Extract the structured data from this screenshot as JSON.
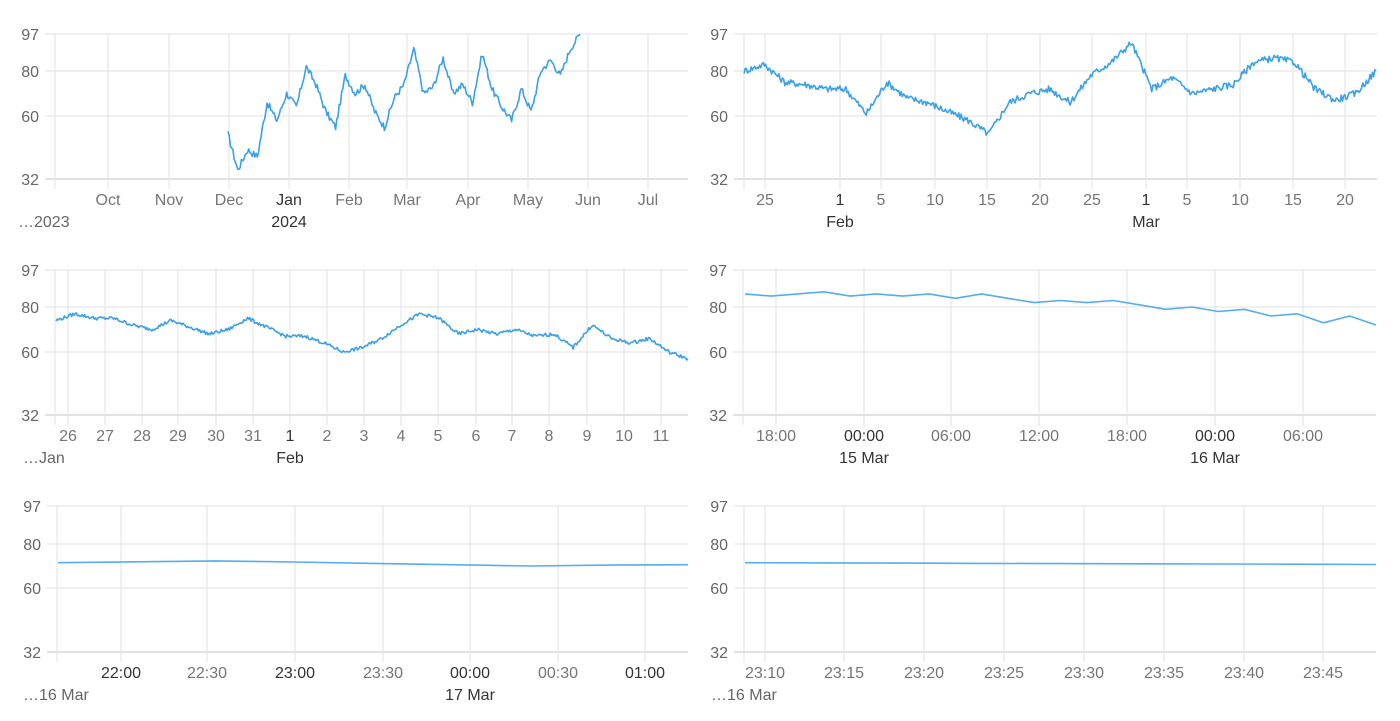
{
  "theme": {
    "line_color": "#3aa0e8",
    "line_color_light": "#55adec",
    "grid_color": "#e2e2e2"
  },
  "chart_data": [
    {
      "id": "top-left",
      "type": "line",
      "title": "",
      "xlabel": "",
      "ylabel": "",
      "ylim": [
        32,
        97
      ],
      "y_ticks": [
        "97",
        "80",
        "60",
        "32"
      ],
      "x_ticks": [
        {
          "label": "Oct",
          "major": false
        },
        {
          "label": "Nov",
          "major": false
        },
        {
          "label": "Dec",
          "major": false
        },
        {
          "label": "Jan",
          "major": true
        },
        {
          "label": "Feb",
          "major": false
        },
        {
          "label": "Mar",
          "major": false
        },
        {
          "label": "Apr",
          "major": false
        },
        {
          "label": "May",
          "major": false
        },
        {
          "label": "Jun",
          "major": false
        },
        {
          "label": "Jul",
          "major": false
        }
      ],
      "x_sublabels": [
        {
          "label": "…2023",
          "context": true
        },
        {
          "label": "2024",
          "context": false
        }
      ],
      "x": [
        "Dec 1",
        "Dec 5",
        "Dec 10",
        "Dec 15",
        "Dec 20",
        "Dec 25",
        "Jan 1",
        "Jan 5",
        "Jan 10",
        "Jan 15",
        "Jan 20",
        "Jan 25",
        "Feb 1",
        "Feb 5",
        "Feb 10",
        "Feb 15",
        "Feb 20",
        "Feb 25",
        "Mar 1",
        "Mar 5",
        "Mar 10",
        "Mar 15",
        "Mar 20",
        "Mar 25",
        "Apr 1",
        "Apr 5",
        "Apr 10",
        "Apr 15",
        "Apr 20",
        "Apr 25",
        "May 1",
        "May 5",
        "May 10",
        "May 15",
        "May 20",
        "May 25",
        "May 30"
      ],
      "values": [
        52,
        36,
        45,
        42,
        66,
        58,
        70,
        64,
        82,
        74,
        62,
        55,
        78,
        70,
        74,
        62,
        55,
        68,
        74,
        90,
        70,
        73,
        86,
        70,
        74,
        66,
        88,
        72,
        64,
        58,
        72,
        62,
        80,
        85,
        78,
        90,
        97
      ]
    },
    {
      "id": "top-right",
      "type": "line",
      "ylim": [
        32,
        97
      ],
      "y_ticks": [
        "97",
        "80",
        "60",
        "32"
      ],
      "x_ticks": [
        {
          "label": "25",
          "major": false
        },
        {
          "label": "1",
          "major": true
        },
        {
          "label": "5",
          "major": false
        },
        {
          "label": "10",
          "major": false
        },
        {
          "label": "15",
          "major": false
        },
        {
          "label": "20",
          "major": false
        },
        {
          "label": "25",
          "major": false
        },
        {
          "label": "1",
          "major": true
        },
        {
          "label": "5",
          "major": false
        },
        {
          "label": "10",
          "major": false
        },
        {
          "label": "15",
          "major": false
        },
        {
          "label": "20",
          "major": false
        }
      ],
      "x_sublabels": [
        {
          "label": "Feb",
          "context": false
        },
        {
          "label": "Mar",
          "context": false
        }
      ],
      "x": [
        "Jan 23",
        "Jan 24",
        "Jan 25",
        "Jan 27",
        "Jan 29",
        "Jan 31",
        "Feb 2",
        "Feb 4",
        "Feb 6",
        "Feb 8",
        "Feb 10",
        "Feb 12",
        "Feb 14",
        "Feb 16",
        "Feb 18",
        "Feb 20",
        "Feb 22",
        "Feb 24",
        "Feb 26",
        "Feb 28",
        "Mar 1",
        "Mar 3",
        "Mar 5",
        "Mar 7",
        "Mar 9",
        "Mar 11",
        "Mar 13",
        "Mar 15",
        "Mar 17",
        "Mar 19",
        "Mar 21",
        "Mar 23"
      ],
      "values": [
        80,
        83,
        75,
        74,
        72,
        72,
        61,
        75,
        68,
        66,
        62,
        58,
        52,
        66,
        70,
        72,
        66,
        78,
        84,
        93,
        72,
        77,
        70,
        72,
        74,
        84,
        86,
        84,
        72,
        67,
        70,
        80
      ]
    },
    {
      "id": "middle-left",
      "type": "line",
      "ylim": [
        32,
        97
      ],
      "y_ticks": [
        "97",
        "80",
        "60",
        "32"
      ],
      "x_ticks": [
        {
          "label": "26",
          "major": false
        },
        {
          "label": "27",
          "major": false
        },
        {
          "label": "28",
          "major": false
        },
        {
          "label": "29",
          "major": false
        },
        {
          "label": "30",
          "major": false
        },
        {
          "label": "31",
          "major": false
        },
        {
          "label": "1",
          "major": true
        },
        {
          "label": "2",
          "major": false
        },
        {
          "label": "3",
          "major": false
        },
        {
          "label": "4",
          "major": false
        },
        {
          "label": "5",
          "major": false
        },
        {
          "label": "6",
          "major": false
        },
        {
          "label": "7",
          "major": false
        },
        {
          "label": "8",
          "major": false
        },
        {
          "label": "9",
          "major": false
        },
        {
          "label": "10",
          "major": false
        },
        {
          "label": "11",
          "major": false
        }
      ],
      "x_sublabels": [
        {
          "label": "…Jan",
          "context": true
        },
        {
          "label": "Feb",
          "context": false
        }
      ],
      "x": [
        "Jan 25.7",
        "Jan 26",
        "Jan 26.6",
        "Jan 27",
        "Jan 27.7",
        "Jan 28",
        "Jan 28.5",
        "Jan 29",
        "Jan 29.7",
        "Jan 30",
        "Jan 30.4",
        "Jan 31",
        "Jan 31.5",
        "Feb 1",
        "Feb 1.5",
        "Feb 2",
        "Feb 2.5",
        "Feb 3",
        "Feb 3.7",
        "Feb 4",
        "Feb 4.8",
        "Feb 5.5",
        "Feb 6",
        "Feb 6.5",
        "Feb 7",
        "Feb 7.5",
        "Feb 8",
        "Feb 8.4",
        "Feb 9",
        "Feb 9.5",
        "Feb 10",
        "Feb 10.5",
        "Feb 11",
        "Feb 11.7"
      ],
      "values": [
        74,
        77,
        75,
        75,
        72,
        70,
        74,
        71,
        68,
        70,
        75,
        71,
        67,
        67,
        64,
        60,
        62,
        66,
        72,
        77,
        75,
        68,
        70,
        68,
        70,
        67,
        68,
        62,
        72,
        66,
        64,
        66,
        60,
        57
      ]
    },
    {
      "id": "middle-right",
      "type": "line",
      "ylim": [
        32,
        97
      ],
      "y_ticks": [
        "97",
        "80",
        "60",
        "32"
      ],
      "x_ticks": [
        {
          "label": "18:00",
          "major": false
        },
        {
          "label": "00:00",
          "major": true
        },
        {
          "label": "06:00",
          "major": false
        },
        {
          "label": "12:00",
          "major": false
        },
        {
          "label": "18:00",
          "major": false
        },
        {
          "label": "00:00",
          "major": true
        },
        {
          "label": "06:00",
          "major": false
        }
      ],
      "x_sublabels": [
        {
          "label": "15 Mar",
          "context": false
        },
        {
          "label": "16 Mar",
          "context": false
        }
      ],
      "x": [
        "14 Mar 15:50",
        "16:30",
        "17:50",
        "19:00",
        "20:50",
        "22:00",
        "23:00",
        "00:00",
        "02:10",
        "04:20",
        "06:00",
        "07:40",
        "08:50",
        "09:50",
        "10:50",
        "12:00",
        "14:20",
        "15:20",
        "17:50",
        "18:50",
        "21:50",
        "22:50",
        "03:50",
        "07:00",
        "10:20"
      ],
      "values": [
        86,
        85,
        86,
        87,
        85,
        86,
        85,
        86,
        84,
        86,
        84,
        82,
        83,
        82,
        83,
        81,
        79,
        80,
        78,
        79,
        76,
        77,
        73,
        76,
        72
      ]
    },
    {
      "id": "bottom-left",
      "type": "line",
      "ylim": [
        32,
        97
      ],
      "y_ticks": [
        "97",
        "80",
        "60",
        "32"
      ],
      "x_ticks": [
        {
          "label": "22:00",
          "major": true
        },
        {
          "label": "22:30",
          "major": false
        },
        {
          "label": "23:00",
          "major": true
        },
        {
          "label": "23:30",
          "major": false
        },
        {
          "label": "00:00",
          "major": true
        },
        {
          "label": "00:30",
          "major": false
        },
        {
          "label": "01:00",
          "major": true
        }
      ],
      "x_sublabels": [
        {
          "label": "…16 Mar",
          "context": true
        },
        {
          "label": "17 Mar",
          "context": false
        }
      ],
      "x": [
        "21:38",
        "22:00",
        "22:30",
        "23:00",
        "23:30",
        "00:00",
        "00:35",
        "01:00",
        "01:15"
      ],
      "values": [
        71.5,
        71.9,
        72.3,
        71.8,
        71.2,
        70.6,
        70.0,
        70.4,
        70.6
      ]
    },
    {
      "id": "bottom-right",
      "type": "line",
      "ylim": [
        32,
        97
      ],
      "y_ticks": [
        "97",
        "80",
        "60",
        "32"
      ],
      "x_ticks": [
        {
          "label": "23:10",
          "major": false
        },
        {
          "label": "23:15",
          "major": false
        },
        {
          "label": "23:20",
          "major": false
        },
        {
          "label": "23:25",
          "major": false
        },
        {
          "label": "23:30",
          "major": false
        },
        {
          "label": "23:35",
          "major": false
        },
        {
          "label": "23:40",
          "major": false
        },
        {
          "label": "23:45",
          "major": false
        }
      ],
      "x_sublabels": [
        {
          "label": "…16 Mar",
          "context": true
        }
      ],
      "x": [
        "23:08.7",
        "23:15",
        "23:20",
        "23:25",
        "23:30",
        "23:35",
        "23:40",
        "23:45",
        "23:48.5"
      ],
      "values": [
        71.5,
        71.4,
        71.3,
        71.2,
        71.1,
        71.0,
        70.9,
        70.8,
        70.7
      ]
    }
  ]
}
